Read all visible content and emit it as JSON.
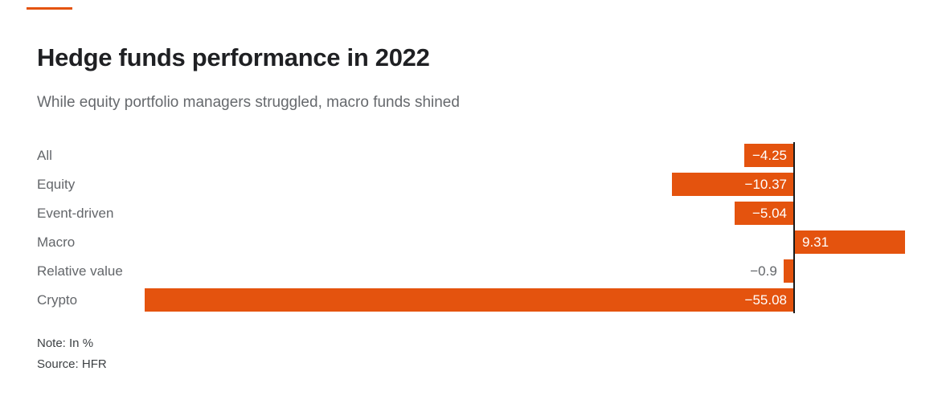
{
  "title": "Hedge funds performance in 2022",
  "subtitle": "While equity portfolio managers struggled, macro funds shined",
  "note": "Note: In %",
  "source": "Source: HFR",
  "colors": {
    "bar": "#e4530e",
    "accent": "#e4530e",
    "axis_line": "#1a1a1a",
    "title_text": "#1f2023",
    "subtitle_text": "#66696d",
    "category_text": "#63666a",
    "value_text_inside": "#ffffff",
    "value_text_outside": "#63666a",
    "note_text": "#3d4144"
  },
  "chart_data": {
    "type": "bar",
    "orientation": "horizontal",
    "title": "Hedge funds performance in 2022",
    "subtitle": "While equity portfolio managers struggled, macro funds shined",
    "unit": "%",
    "categories": [
      "All",
      "Equity",
      "Event-driven",
      "Macro",
      "Relative value",
      "Crypto"
    ],
    "values": [
      -4.25,
      -10.37,
      -5.04,
      9.31,
      -0.9,
      -55.08
    ],
    "value_labels": [
      "−4.25",
      "−10.37",
      "−5.04",
      "9.31",
      "−0.9",
      "−55.08"
    ],
    "baseline": 0,
    "xlim": [
      -55.08,
      9.31
    ],
    "grid": false,
    "legend": false,
    "axis_ticks": false
  }
}
